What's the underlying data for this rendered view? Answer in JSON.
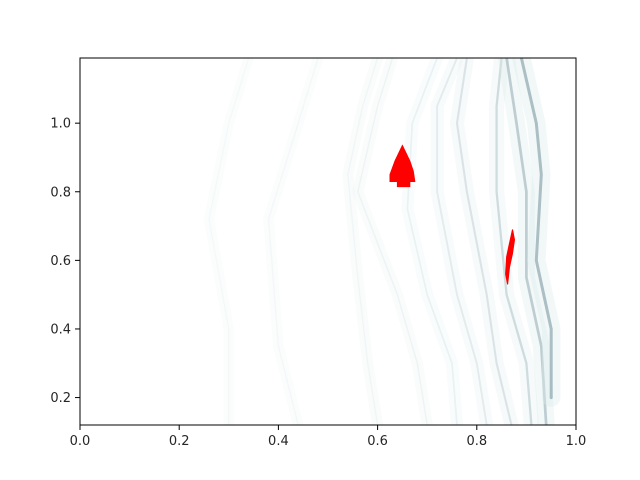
{
  "chart_data": {
    "type": "heatmap",
    "title": "",
    "xlabel": "",
    "ylabel": "",
    "xlim": [
      0.0,
      1.0
    ],
    "ylim": [
      0.12,
      1.19
    ],
    "x_ticks": [
      "0.0",
      "0.2",
      "0.4",
      "0.6",
      "0.8",
      "1.0"
    ],
    "y_ticks": [
      "0.2",
      "0.4",
      "0.6",
      "0.8",
      "1.0"
    ],
    "grid": false,
    "legend": "none",
    "colormap": "bone_r",
    "colors": {
      "background": "#ffffff",
      "band_light": "#dcebeb",
      "band_dark": "#5f7f8c",
      "highlight": "#ff0000"
    },
    "bands": [
      {
        "curve": [
          [
            0.3,
            0.12
          ],
          [
            0.3,
            0.4
          ],
          [
            0.26,
            0.72
          ],
          [
            0.3,
            1.0
          ],
          [
            0.34,
            1.19
          ]
        ],
        "intensity": 0.03
      },
      {
        "curve": [
          [
            0.44,
            0.12
          ],
          [
            0.4,
            0.35
          ],
          [
            0.38,
            0.72
          ],
          [
            0.44,
            1.0
          ],
          [
            0.48,
            1.19
          ]
        ],
        "intensity": 0.05
      },
      {
        "curve": [
          [
            0.6,
            0.12
          ],
          [
            0.58,
            0.3
          ],
          [
            0.56,
            0.55
          ],
          [
            0.54,
            0.85
          ],
          [
            0.57,
            1.05
          ],
          [
            0.6,
            1.19
          ]
        ],
        "intensity": 0.08
      },
      {
        "curve": [
          [
            0.7,
            0.12
          ],
          [
            0.68,
            0.3
          ],
          [
            0.64,
            0.5
          ],
          [
            0.56,
            0.8
          ],
          [
            0.6,
            1.05
          ],
          [
            0.63,
            1.19
          ]
        ],
        "intensity": 0.1
      },
      {
        "curve": [
          [
            0.76,
            0.12
          ],
          [
            0.75,
            0.3
          ],
          [
            0.7,
            0.5
          ],
          [
            0.66,
            0.75
          ],
          [
            0.67,
            1.0
          ],
          [
            0.72,
            1.19
          ]
        ],
        "intensity": 0.16
      },
      {
        "curve": [
          [
            0.82,
            0.12
          ],
          [
            0.8,
            0.3
          ],
          [
            0.76,
            0.5
          ],
          [
            0.72,
            0.8
          ],
          [
            0.72,
            1.05
          ],
          [
            0.76,
            1.19
          ]
        ],
        "intensity": 0.22
      },
      {
        "curve": [
          [
            0.87,
            0.12
          ],
          [
            0.84,
            0.3
          ],
          [
            0.82,
            0.5
          ],
          [
            0.78,
            0.8
          ],
          [
            0.76,
            1.0
          ],
          [
            0.78,
            1.19
          ]
        ],
        "intensity": 0.3
      },
      {
        "curve": [
          [
            0.91,
            0.12
          ],
          [
            0.9,
            0.3
          ],
          [
            0.86,
            0.5
          ],
          [
            0.84,
            0.8
          ],
          [
            0.84,
            1.05
          ],
          [
            0.85,
            1.19
          ]
        ],
        "intensity": 0.38
      },
      {
        "curve": [
          [
            0.94,
            0.12
          ],
          [
            0.93,
            0.35
          ],
          [
            0.9,
            0.55
          ],
          [
            0.9,
            0.8
          ],
          [
            0.88,
            1.0
          ],
          [
            0.86,
            1.19
          ]
        ],
        "intensity": 0.5
      },
      {
        "curve": [
          [
            0.95,
            0.2
          ],
          [
            0.95,
            0.4
          ],
          [
            0.92,
            0.6
          ],
          [
            0.93,
            0.85
          ],
          [
            0.92,
            1.0
          ],
          [
            0.89,
            1.19
          ]
        ],
        "intensity": 0.6
      }
    ],
    "highlight_regions": [
      {
        "name": "",
        "polygon": [
          [
            0.65,
            0.935
          ],
          [
            0.635,
            0.89
          ],
          [
            0.625,
            0.85
          ],
          [
            0.625,
            0.83
          ],
          [
            0.64,
            0.83
          ],
          [
            0.64,
            0.815
          ],
          [
            0.665,
            0.815
          ],
          [
            0.665,
            0.83
          ],
          [
            0.675,
            0.83
          ],
          [
            0.672,
            0.86
          ],
          [
            0.665,
            0.89
          ]
        ]
      },
      {
        "name": "",
        "polygon": [
          [
            0.872,
            0.69
          ],
          [
            0.876,
            0.66
          ],
          [
            0.872,
            0.62
          ],
          [
            0.866,
            0.58
          ],
          [
            0.862,
            0.53
          ],
          [
            0.858,
            0.56
          ],
          [
            0.86,
            0.61
          ],
          [
            0.866,
            0.65
          ]
        ]
      }
    ]
  }
}
